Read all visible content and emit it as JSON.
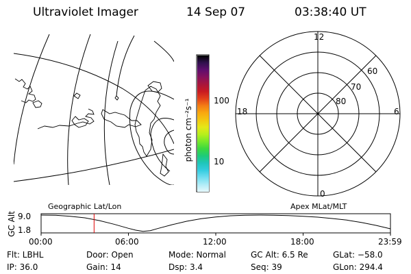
{
  "header": {
    "instrument": "Ultraviolet Imager",
    "date": "14 Sep 07",
    "time": "03:38:40 UT"
  },
  "geo_panel": {
    "label": "Geographic Lat/Lon"
  },
  "polar_panel": {
    "label": "Apex MLat/MLT",
    "mlt_labels": {
      "top": "12",
      "bottom": "0",
      "left": "18",
      "right": "6"
    },
    "lat_labels": [
      "60",
      "70",
      "80"
    ]
  },
  "colorbar": {
    "unit": "photon cm⁻²s⁻¹",
    "ticks": [
      "100",
      "10"
    ],
    "colors": [
      "#000000",
      "#30104e",
      "#5e0e6e",
      "#86115c",
      "#a8163c",
      "#c81a22",
      "#e2401a",
      "#f37c14",
      "#f9a80f",
      "#f3c810",
      "#e5e818",
      "#b7ef1c",
      "#76e82a",
      "#3bd83f",
      "#1ecb7a",
      "#1fc6ba",
      "#34cce0",
      "#72def0",
      "#b0ecf7",
      "#e6f8fc"
    ]
  },
  "altitude_panel": {
    "axis_label": "GC Alt",
    "y_ticks": [
      "9.0",
      "1.8"
    ],
    "x_ticks": [
      "00:00",
      "06:00",
      "12:00",
      "18:00",
      "23:59"
    ]
  },
  "chart_data": {
    "type": "line",
    "title": "",
    "xlabel": "",
    "ylabel": "GC Alt",
    "ylim": [
      1.8,
      9.0
    ],
    "xlim_hours": [
      0,
      24
    ],
    "series": [
      {
        "x_hours": [
          0,
          1,
          2,
          3,
          4,
          5,
          6,
          6.5,
          7,
          7.5,
          8,
          9,
          10,
          11,
          12,
          13,
          14,
          15,
          16,
          17,
          18,
          19,
          20,
          21,
          22,
          23,
          24
        ],
        "values": [
          9.0,
          8.9,
          8.5,
          7.8,
          6.6,
          5.0,
          3.2,
          2.4,
          1.9,
          2.2,
          3.1,
          4.8,
          6.3,
          7.4,
          8.2,
          8.7,
          8.95,
          9.0,
          8.95,
          8.8,
          8.5,
          8.1,
          7.5,
          6.8,
          5.8,
          4.5,
          3.0
        ]
      }
    ],
    "current_time_hours": 3.64
  },
  "status": {
    "flt": "Flt: LBHL",
    "door": "Door: Open",
    "mode": "Mode:  Normal",
    "gc_alt": "GC Alt: 6.5 Re",
    "glat": "GLat: −58.0",
    "ip": "IP: 36.0",
    "gain": "Gain: 14",
    "dsp": "Dsp:     3.4",
    "seq": "Seq: 39",
    "glon": "GLon: 294.4"
  }
}
